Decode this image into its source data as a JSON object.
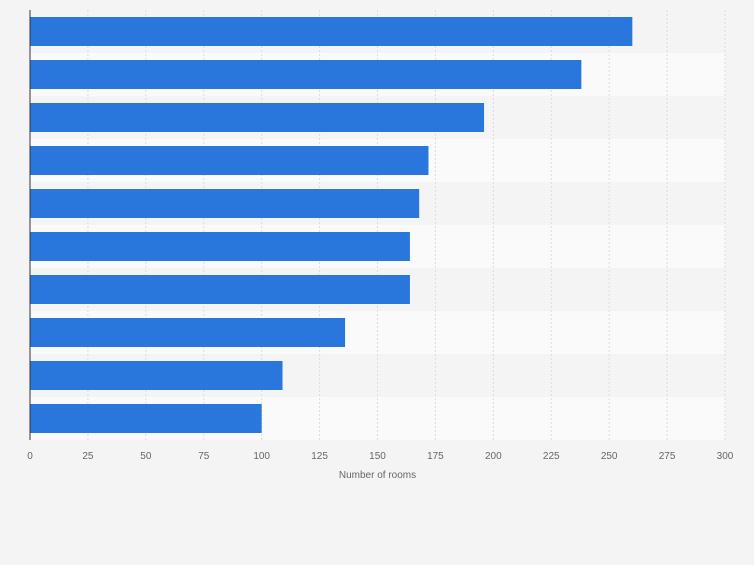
{
  "chart_data": {
    "type": "bar",
    "orientation": "horizontal",
    "title": "",
    "xlabel": "Number of rooms",
    "ylabel": "",
    "xlim": [
      0,
      300
    ],
    "x_ticks": [
      0,
      25,
      50,
      75,
      100,
      125,
      150,
      175,
      200,
      225,
      250,
      275,
      300
    ],
    "categories": [
      "",
      "",
      "",
      "",
      "",
      "",
      "",
      "",
      "",
      ""
    ],
    "values": [
      260,
      238,
      196,
      172,
      168,
      164,
      164,
      136,
      109,
      100
    ],
    "grid": true,
    "bar_color": "#2977dd"
  }
}
